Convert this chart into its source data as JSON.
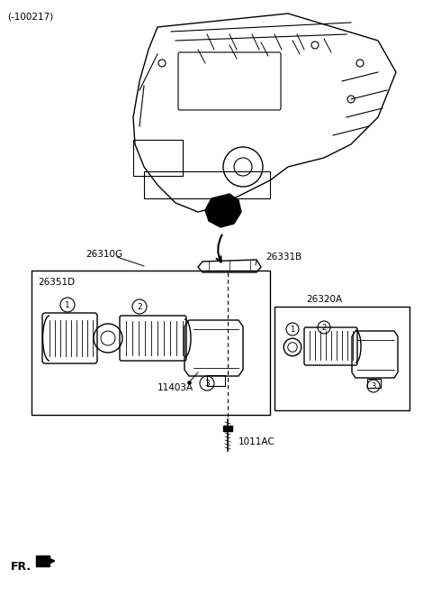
{
  "title": "(-100217)",
  "bg_color": "#ffffff",
  "line_color": "#000000",
  "labels": {
    "header": "(-100217)",
    "label_26310G": "26310G",
    "label_26351D": "26351D",
    "label_26331B": "26331B",
    "label_11403A": "11403A",
    "label_1011AC": "1011AC",
    "label_26320A": "26320A",
    "fr_label": "FR."
  },
  "figsize": [
    4.8,
    6.62
  ],
  "dpi": 100
}
